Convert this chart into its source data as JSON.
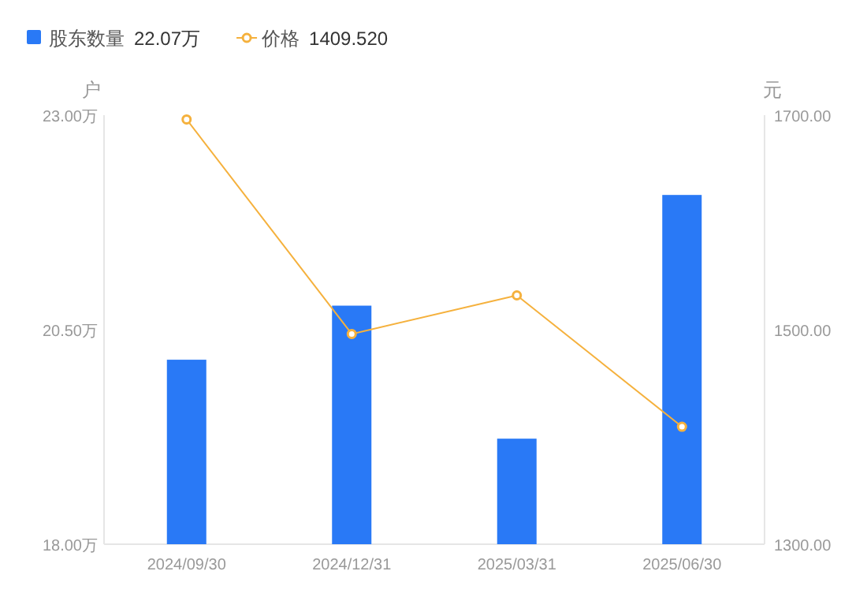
{
  "chart_data": {
    "type": "bar",
    "categories": [
      "2024/09/30",
      "2024/12/31",
      "2025/03/31",
      "2025/06/30"
    ],
    "series": [
      {
        "name": "股东数量",
        "color": "#2979f6",
        "values": [
          20.15,
          20.78,
          19.23,
          22.07
        ]
      },
      {
        "name": "价格",
        "type": "line",
        "axis": "y2",
        "color": "#f5b13d",
        "marker": "circle",
        "values": [
          1696,
          1496,
          1532,
          1409.52
        ]
      }
    ],
    "ylabel": "户",
    "y2label": "元",
    "ylim": [
      18,
      23
    ],
    "yticks": [
      {
        "value": 18,
        "label": "18.00万"
      },
      {
        "value": 20.5,
        "label": "20.50万"
      },
      {
        "value": 23,
        "label": "23.00万"
      }
    ],
    "y2lim": [
      1300,
      1700
    ],
    "y2ticks": [
      {
        "value": 1300,
        "label": "1300.00"
      },
      {
        "value": 1500,
        "label": "1500.00"
      },
      {
        "value": 1700,
        "label": "1700.00"
      }
    ],
    "annotations": [
      "22.07万",
      "1409.520"
    ],
    "legend": "top left",
    "grid": false
  }
}
